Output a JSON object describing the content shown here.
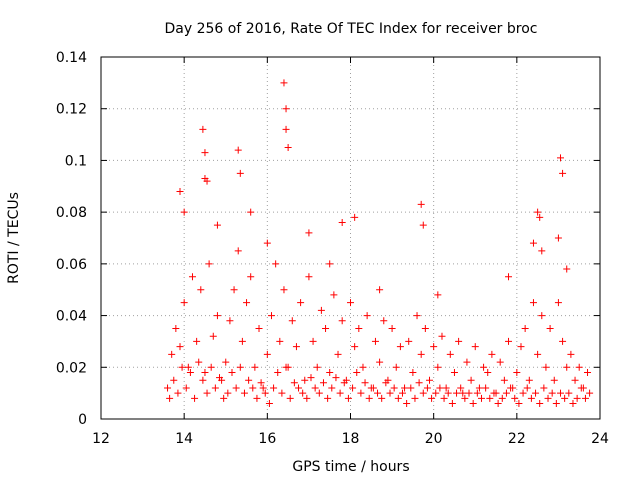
{
  "chart_data": {
    "type": "scatter",
    "title": "Day 256 of 2016, Rate Of TEC Index for receiver broc",
    "xlabel": "GPS time / hours",
    "ylabel": "ROTI / TECUs",
    "xlim": [
      12,
      24
    ],
    "ylim": [
      0,
      0.14
    ],
    "x_ticks": [
      12,
      14,
      16,
      18,
      20,
      22,
      24
    ],
    "x_tick_labels": [
      "12",
      "14",
      "16",
      "18",
      "20",
      "22",
      "24"
    ],
    "y_ticks": [
      0,
      0.02,
      0.04,
      0.06,
      0.08,
      0.1,
      0.12,
      0.14
    ],
    "y_tick_labels": [
      "0",
      "0.02",
      "0.04",
      "0.06",
      "0.08",
      "0.1",
      "0.12",
      "0.14"
    ],
    "grid": true,
    "marker": "+",
    "color": "#ff0000",
    "series": [
      {
        "name": "ROTI",
        "x": [
          13.6,
          13.7,
          13.8,
          13.9,
          14.0,
          14.1,
          14.2,
          14.3,
          14.4,
          14.5,
          14.6,
          14.7,
          14.8,
          14.9,
          15.0,
          15.1,
          15.2,
          15.3,
          15.4,
          15.5,
          15.6,
          15.7,
          15.8,
          15.9,
          16.0,
          16.1,
          16.2,
          16.3,
          16.4,
          16.5,
          16.6,
          16.7,
          16.8,
          16.9,
          17.0,
          17.1,
          17.2,
          17.3,
          17.4,
          17.5,
          17.6,
          17.7,
          17.8,
          17.9,
          18.0,
          18.1,
          18.2,
          18.3,
          18.4,
          18.5,
          18.6,
          18.7,
          18.8,
          18.9,
          19.0,
          19.1,
          19.2,
          19.3,
          19.4,
          19.5,
          19.6,
          19.7,
          19.8,
          19.9,
          20.0,
          20.1,
          20.2,
          20.3,
          20.4,
          20.5,
          20.6,
          20.7,
          20.8,
          20.9,
          21.0,
          21.1,
          21.2,
          21.3,
          21.4,
          21.5,
          21.6,
          21.7,
          21.8,
          21.9,
          22.0,
          22.1,
          22.2,
          22.3,
          22.4,
          22.5,
          22.6,
          22.7,
          22.8,
          22.9,
          23.0,
          23.1,
          23.2,
          23.3,
          23.4,
          23.5,
          23.6,
          23.7,
          13.65,
          13.75,
          13.85,
          13.95,
          14.05,
          14.15,
          14.25,
          14.35,
          14.45,
          14.55,
          14.65,
          14.75,
          14.85,
          14.95,
          15.05,
          15.15,
          15.25,
          15.35,
          15.45,
          15.55,
          15.65,
          15.75,
          15.85,
          15.95,
          16.05,
          16.15,
          16.25,
          16.35,
          16.45,
          16.55,
          16.65,
          16.75,
          16.85,
          16.95,
          17.05,
          17.15,
          17.25,
          17.35,
          17.45,
          17.55,
          17.65,
          17.75,
          17.85,
          17.95,
          18.05,
          18.15,
          18.25,
          18.35,
          18.45,
          18.55,
          18.65,
          18.75,
          18.85,
          18.95,
          19.05,
          19.15,
          19.25,
          19.35,
          19.45,
          19.55,
          19.65,
          19.75,
          19.85,
          19.95,
          20.05,
          20.15,
          20.25,
          20.35,
          20.45,
          20.55,
          20.65,
          20.75,
          20.85,
          20.95,
          21.05,
          21.15,
          21.25,
          21.35,
          21.45,
          21.55,
          21.65,
          21.75,
          21.85,
          21.95,
          22.05,
          22.15,
          22.25,
          22.35,
          22.45,
          22.55,
          22.65,
          22.75,
          22.85,
          22.95,
          23.05,
          23.15,
          23.25,
          23.35,
          23.45,
          23.55,
          23.65,
          23.75,
          13.9,
          14.0,
          14.45,
          14.5,
          14.5,
          14.55,
          14.8,
          15.3,
          15.35,
          15.6,
          16.0,
          16.4,
          16.45,
          16.45,
          16.5,
          17.0,
          17.5,
          17.8,
          18.1,
          18.7,
          19.7,
          19.75,
          20.1,
          21.8,
          22.4,
          22.5,
          22.55,
          22.6,
          23.0,
          23.05,
          23.1,
          23.2
        ],
        "y": [
          0.012,
          0.025,
          0.035,
          0.028,
          0.045,
          0.02,
          0.055,
          0.03,
          0.05,
          0.018,
          0.06,
          0.032,
          0.04,
          0.015,
          0.022,
          0.038,
          0.05,
          0.065,
          0.03,
          0.045,
          0.055,
          0.02,
          0.035,
          0.012,
          0.025,
          0.04,
          0.06,
          0.03,
          0.05,
          0.02,
          0.038,
          0.028,
          0.045,
          0.015,
          0.055,
          0.03,
          0.02,
          0.042,
          0.035,
          0.018,
          0.048,
          0.025,
          0.038,
          0.015,
          0.045,
          0.028,
          0.035,
          0.02,
          0.04,
          0.012,
          0.03,
          0.022,
          0.038,
          0.015,
          0.035,
          0.02,
          0.028,
          0.012,
          0.03,
          0.018,
          0.04,
          0.025,
          0.035,
          0.015,
          0.028,
          0.02,
          0.032,
          0.012,
          0.025,
          0.018,
          0.03,
          0.01,
          0.022,
          0.015,
          0.028,
          0.012,
          0.02,
          0.018,
          0.025,
          0.01,
          0.022,
          0.015,
          0.03,
          0.012,
          0.018,
          0.028,
          0.035,
          0.015,
          0.045,
          0.025,
          0.04,
          0.02,
          0.035,
          0.015,
          0.045,
          0.03,
          0.02,
          0.025,
          0.015,
          0.02,
          0.012,
          0.018,
          0.008,
          0.015,
          0.01,
          0.02,
          0.012,
          0.018,
          0.008,
          0.022,
          0.015,
          0.01,
          0.02,
          0.012,
          0.016,
          0.008,
          0.01,
          0.018,
          0.012,
          0.02,
          0.01,
          0.015,
          0.012,
          0.008,
          0.014,
          0.01,
          0.006,
          0.012,
          0.018,
          0.01,
          0.02,
          0.008,
          0.014,
          0.012,
          0.01,
          0.008,
          0.016,
          0.012,
          0.01,
          0.014,
          0.008,
          0.012,
          0.016,
          0.01,
          0.014,
          0.008,
          0.012,
          0.018,
          0.01,
          0.014,
          0.008,
          0.012,
          0.01,
          0.008,
          0.014,
          0.01,
          0.012,
          0.008,
          0.01,
          0.006,
          0.012,
          0.008,
          0.014,
          0.01,
          0.012,
          0.008,
          0.01,
          0.012,
          0.008,
          0.01,
          0.006,
          0.01,
          0.012,
          0.008,
          0.01,
          0.006,
          0.01,
          0.008,
          0.012,
          0.008,
          0.01,
          0.006,
          0.008,
          0.01,
          0.012,
          0.008,
          0.006,
          0.01,
          0.012,
          0.008,
          0.01,
          0.006,
          0.012,
          0.008,
          0.01,
          0.006,
          0.01,
          0.008,
          0.01,
          0.006,
          0.008,
          0.012,
          0.008,
          0.01,
          0.088,
          0.08,
          0.112,
          0.103,
          0.093,
          0.092,
          0.075,
          0.104,
          0.095,
          0.08,
          0.068,
          0.13,
          0.12,
          0.112,
          0.105,
          0.072,
          0.06,
          0.076,
          0.078,
          0.05,
          0.083,
          0.075,
          0.048,
          0.055,
          0.068,
          0.08,
          0.078,
          0.065,
          0.07,
          0.101,
          0.095,
          0.058
        ]
      }
    ]
  }
}
